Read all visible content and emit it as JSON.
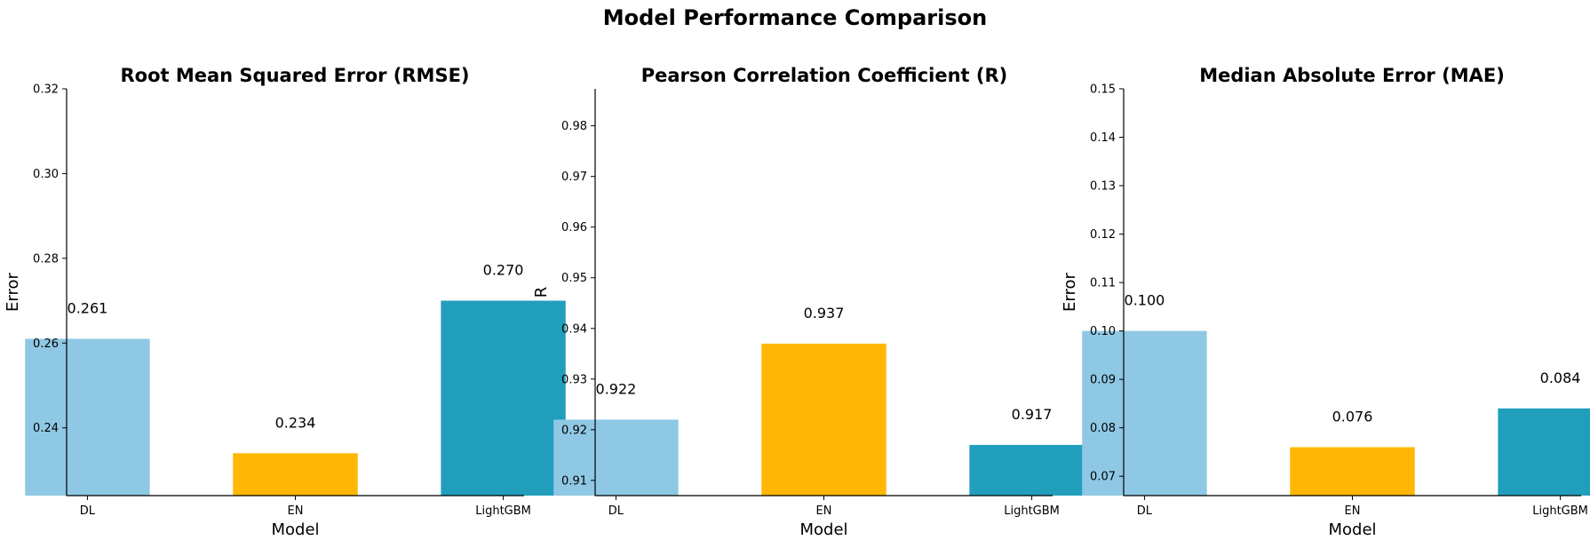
{
  "figure_title": "Model Performance Comparison",
  "colors": {
    "DL": "#8fc8e4",
    "EN": "#ffb703",
    "LightGBM": "#219ebc"
  },
  "chart_data": [
    {
      "type": "bar",
      "title": "Root Mean Squared Error (RMSE)",
      "xlabel": "Model",
      "ylabel": "Error",
      "categories": [
        "DL",
        "EN",
        "LightGBM"
      ],
      "values": [
        0.261,
        0.234,
        0.27
      ],
      "value_labels": [
        "0.261",
        "0.234",
        "0.270"
      ],
      "ylim": [
        0.224,
        0.32
      ],
      "yticks": [
        0.24,
        0.26,
        0.28,
        0.3,
        0.32
      ],
      "ytick_labels": [
        "0.24",
        "0.26",
        "0.28",
        "0.30",
        "0.32"
      ],
      "grid": false,
      "legend": "none"
    },
    {
      "type": "bar",
      "title": "Pearson Correlation Coefficient (R)",
      "xlabel": "Model",
      "ylabel": "R",
      "categories": [
        "DL",
        "EN",
        "LightGBM"
      ],
      "values": [
        0.922,
        0.937,
        0.917
      ],
      "value_labels": [
        "0.922",
        "0.937",
        "0.917"
      ],
      "ylim": [
        0.907,
        0.9873
      ],
      "yticks": [
        0.91,
        0.92,
        0.93,
        0.94,
        0.95,
        0.96,
        0.97,
        0.98
      ],
      "ytick_labels": [
        "0.91",
        "0.92",
        "0.93",
        "0.94",
        "0.95",
        "0.96",
        "0.97",
        "0.98"
      ],
      "grid": false,
      "legend": "none"
    },
    {
      "type": "bar",
      "title": "Median Absolute Error (MAE)",
      "xlabel": "Model",
      "ylabel": "Error",
      "categories": [
        "DL",
        "EN",
        "LightGBM"
      ],
      "values": [
        0.1,
        0.076,
        0.084
      ],
      "value_labels": [
        "0.100",
        "0.076",
        "0.084"
      ],
      "ylim": [
        0.066,
        0.15
      ],
      "yticks": [
        0.07,
        0.08,
        0.09,
        0.1,
        0.11,
        0.12,
        0.13,
        0.14,
        0.15
      ],
      "ytick_labels": [
        "0.07",
        "0.08",
        "0.09",
        "0.10",
        "0.11",
        "0.12",
        "0.13",
        "0.14",
        "0.15"
      ],
      "grid": false,
      "legend": "none"
    }
  ]
}
